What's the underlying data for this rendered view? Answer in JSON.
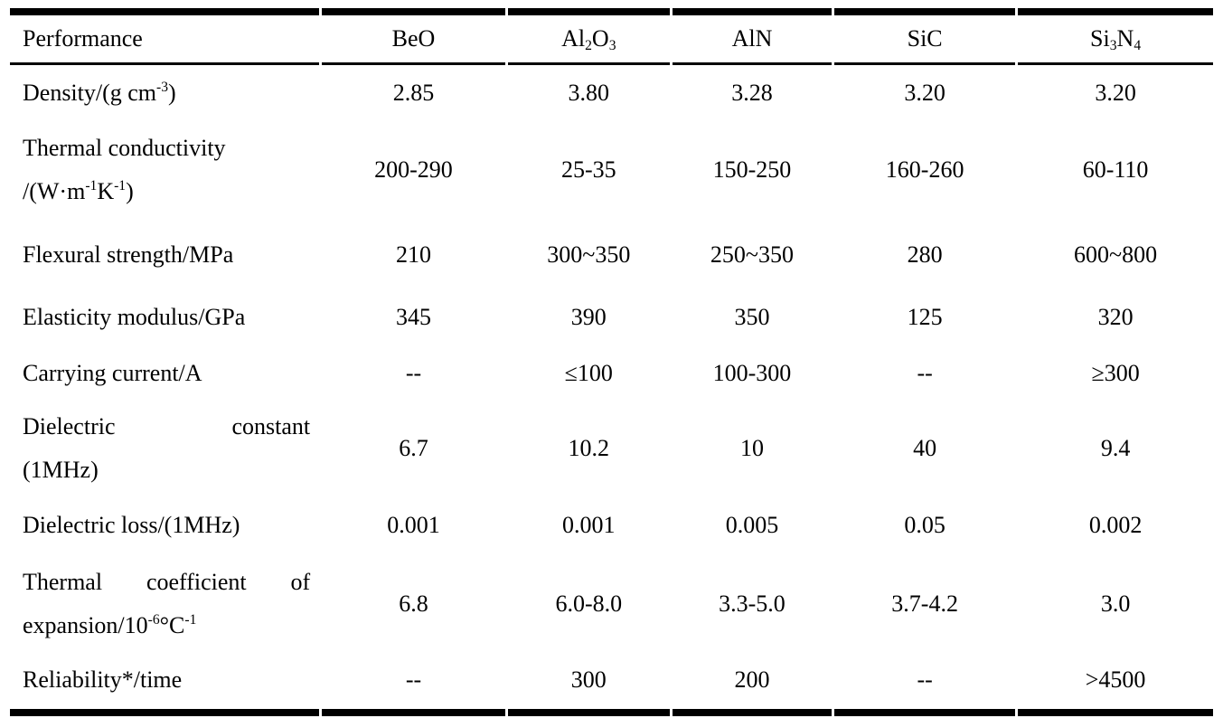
{
  "table": {
    "columns": [
      "Performance",
      "BeO",
      "Al<sub>2</sub>O<sub>3</sub>",
      "AlN",
      "SiC",
      "Si<sub>3</sub>N<sub>4</sub>"
    ],
    "rows": [
      {
        "label_lines": [
          [
            "Density/(g cm<sup>-3</sup>)"
          ]
        ],
        "values": [
          "2.85",
          "3.80",
          "3.28",
          "3.20",
          "3.20"
        ]
      },
      {
        "label_lines": [
          [
            "Thermal conductivity"
          ],
          [
            "/(W·m<sup>-1</sup>K<sup>-1</sup>)"
          ]
        ],
        "values": [
          "200-290",
          "25-35",
          "150-250",
          "160-260",
          "60-110"
        ]
      },
      {
        "label_lines": [
          [
            "Flexural strength/MPa"
          ]
        ],
        "values": [
          "210",
          "300~350",
          "250~350",
          "280",
          "600~800"
        ]
      },
      {
        "label_lines": [
          [
            "Elasticity modulus/GPa"
          ]
        ],
        "values": [
          "345",
          "390",
          "350",
          "125",
          "320"
        ]
      },
      {
        "label_lines": [
          [
            "Carrying current/A"
          ]
        ],
        "values": [
          "--",
          "≤100",
          "100-300",
          "--",
          "≥300"
        ]
      },
      {
        "label_lines": [
          [
            "Dielectric",
            "constant"
          ],
          [
            "(1MHz)"
          ]
        ],
        "values": [
          "6.7",
          "10.2",
          "10",
          "40",
          "9.4"
        ]
      },
      {
        "label_lines": [
          [
            "Dielectric loss/(1MHz)"
          ]
        ],
        "values": [
          "0.001",
          "0.001",
          "0.005",
          "0.05",
          "0.002"
        ]
      },
      {
        "label_lines": [
          [
            "Thermal",
            "coefficient",
            "of"
          ],
          [
            "expansion/10<sup>-6</sup>°C<sup>-1</sup>"
          ]
        ],
        "values": [
          "6.8",
          "6.0-8.0",
          "3.3-5.0",
          "3.7-4.2",
          "3.0"
        ]
      },
      {
        "label_lines": [
          [
            "Reliability*/time"
          ]
        ],
        "values": [
          "--",
          "300",
          "200",
          "--",
          ">4500"
        ]
      }
    ]
  }
}
